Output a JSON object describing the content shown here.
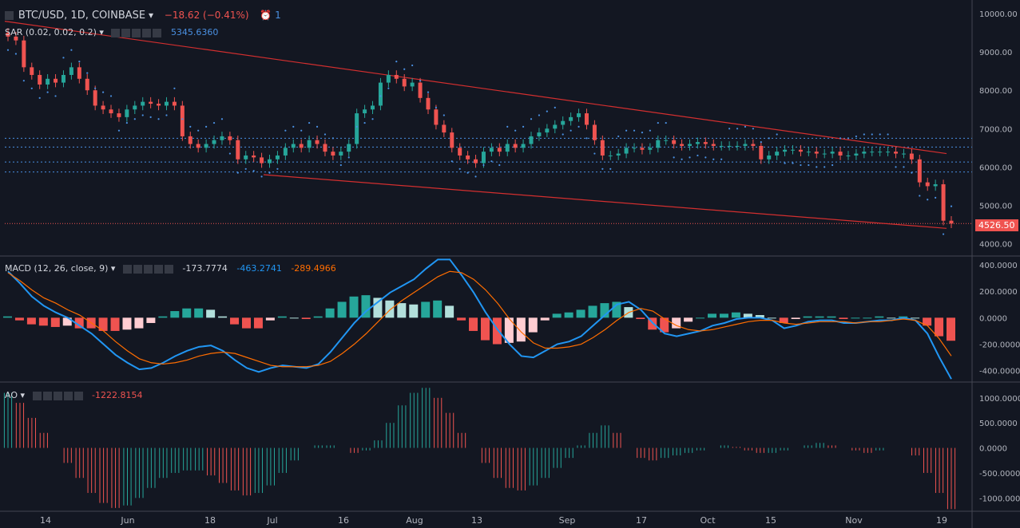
{
  "header": {
    "symbol": "BTC/USD, 1D, COINBASE",
    "change": "−18.62 (−0.41%)",
    "alerts": "1"
  },
  "sar_legend": {
    "label": "SAR (0.02, 0.02, 0.2)",
    "value": "5345.6360"
  },
  "macd_legend": {
    "label": "MACD (12, 26, close, 9)",
    "hist": "-173.7774",
    "macd": "-463.2741",
    "signal": "-289.4966"
  },
  "ao_legend": {
    "label": "AO",
    "value": "-1222.8154"
  },
  "last_price": "4526.50",
  "colors": {
    "background": "#131722",
    "up": "#26a69a",
    "down": "#ef5350",
    "sar": "#4a90e2",
    "trend": "#d32f2f",
    "macd": "#2196f3",
    "signal": "#ff6d00",
    "ao_up": "#26a69a",
    "ao_down": "#ef5350"
  },
  "chart_data": [
    {
      "type": "candlestick",
      "title": "BTC/USD, 1D, COINBASE",
      "x_ticks": [
        "14",
        "Jun",
        "18",
        "Jul",
        "16",
        "Aug",
        "13",
        "Sep",
        "17",
        "Oct",
        "15",
        "Nov",
        "19"
      ],
      "y_ticks": [
        "10000.00",
        "9000.00",
        "8000.00",
        "7000.00",
        "6000.00",
        "5000.00",
        "4000.00"
      ],
      "ylim": [
        3700,
        10250
      ],
      "series": [
        {
          "points": [
            [
              0,
              9400
            ],
            [
              10,
              9300
            ],
            [
              20,
              8600
            ],
            [
              30,
              8400
            ],
            [
              40,
              8150
            ],
            [
              50,
              8300
            ],
            [
              60,
              8200
            ],
            [
              70,
              8400
            ],
            [
              80,
              8600
            ],
            [
              90,
              8300
            ],
            [
              100,
              8000
            ],
            [
              110,
              7600
            ],
            [
              120,
              7500
            ],
            [
              130,
              7400
            ],
            [
              140,
              7300
            ],
            [
              150,
              7500
            ],
            [
              160,
              7600
            ],
            [
              170,
              7700
            ],
            [
              180,
              7650
            ],
            [
              190,
              7600
            ],
            [
              200,
              7700
            ],
            [
              210,
              7600
            ],
            [
              220,
              6800
            ],
            [
              230,
              6600
            ],
            [
              240,
              6500
            ],
            [
              250,
              6600
            ],
            [
              260,
              6700
            ],
            [
              270,
              6800
            ],
            [
              280,
              6700
            ],
            [
              290,
              6200
            ],
            [
              300,
              6300
            ],
            [
              310,
              6250
            ],
            [
              320,
              6100
            ],
            [
              330,
              6200
            ],
            [
              340,
              6300
            ],
            [
              350,
              6500
            ],
            [
              360,
              6600
            ],
            [
              370,
              6500
            ],
            [
              380,
              6700
            ],
            [
              390,
              6600
            ],
            [
              400,
              6400
            ],
            [
              410,
              6300
            ],
            [
              420,
              6400
            ],
            [
              430,
              6600
            ],
            [
              440,
              7400
            ],
            [
              450,
              7500
            ],
            [
              460,
              7600
            ],
            [
              470,
              8200
            ],
            [
              480,
              8400
            ],
            [
              490,
              8300
            ],
            [
              500,
              8100
            ],
            [
              510,
              8200
            ],
            [
              520,
              7800
            ],
            [
              530,
              7500
            ],
            [
              540,
              7100
            ],
            [
              550,
              6900
            ],
            [
              560,
              6500
            ],
            [
              570,
              6300
            ],
            [
              580,
              6200
            ],
            [
              590,
              6100
            ],
            [
              600,
              6400
            ],
            [
              610,
              6500
            ],
            [
              620,
              6400
            ],
            [
              630,
              6600
            ],
            [
              640,
              6500
            ],
            [
              650,
              6600
            ],
            [
              660,
              6800
            ],
            [
              670,
              6900
            ],
            [
              680,
              7000
            ],
            [
              690,
              7100
            ],
            [
              700,
              7200
            ],
            [
              710,
              7300
            ],
            [
              720,
              7400
            ],
            [
              730,
              7100
            ],
            [
              740,
              6700
            ],
            [
              750,
              6300
            ],
            [
              760,
              6300
            ],
            [
              770,
              6350
            ],
            [
              780,
              6500
            ],
            [
              790,
              6500
            ],
            [
              800,
              6450
            ],
            [
              810,
              6500
            ],
            [
              820,
              6700
            ],
            [
              830,
              6700
            ],
            [
              840,
              6600
            ],
            [
              850,
              6550
            ],
            [
              860,
              6600
            ],
            [
              870,
              6650
            ],
            [
              880,
              6600
            ],
            [
              890,
              6550
            ],
            [
              900,
              6550
            ],
            [
              910,
              6550
            ],
            [
              920,
              6550
            ],
            [
              930,
              6600
            ],
            [
              940,
              6550
            ],
            [
              950,
              6200
            ],
            [
              960,
              6300
            ],
            [
              970,
              6400
            ],
            [
              980,
              6450
            ],
            [
              990,
              6450
            ],
            [
              1000,
              6400
            ],
            [
              1010,
              6400
            ],
            [
              1020,
              6350
            ],
            [
              1030,
              6350
            ],
            [
              1040,
              6400
            ],
            [
              1050,
              6300
            ],
            [
              1060,
              6300
            ],
            [
              1070,
              6350
            ],
            [
              1080,
              6400
            ],
            [
              1090,
              6400
            ],
            [
              1100,
              6400
            ],
            [
              1110,
              6400
            ],
            [
              1120,
              6350
            ],
            [
              1130,
              6350
            ],
            [
              1140,
              6200
            ],
            [
              1150,
              5600
            ],
            [
              1160,
              5500
            ],
            [
              1170,
              5550
            ],
            [
              1180,
              4600
            ],
            [
              1190,
              4526
            ]
          ]
        }
      ],
      "sar": {
        "name": "SAR (0.02, 0.02, 0.2)",
        "last": 5345.636
      },
      "last_price": 4526.5
    },
    {
      "type": "line",
      "title": "MACD (12, 26, close, 9)",
      "y_ticks": [
        "400.0000",
        "200.0000",
        "0.0000",
        "-200.0000",
        "-400.0000"
      ],
      "ylim": [
        -480,
        460
      ],
      "series": [
        {
          "name": "MACD",
          "values": [
            350,
            260,
            160,
            90,
            40,
            0,
            -60,
            -120,
            -200,
            -280,
            -340,
            -390,
            -380,
            -340,
            -290,
            -250,
            -220,
            -210,
            -250,
            -320,
            -380,
            -410,
            -380,
            -360,
            -370,
            -380,
            -350,
            -260,
            -150,
            -40,
            50,
            120,
            190,
            240,
            290,
            370,
            440,
            440,
            320,
            190,
            40,
            -90,
            -200,
            -290,
            -300,
            -250,
            -200,
            -180,
            -140,
            -60,
            20,
            100,
            120,
            60,
            -40,
            -120,
            -140,
            -120,
            -100,
            -60,
            -40,
            -10,
            0,
            0,
            -20,
            -80,
            -60,
            -30,
            -20,
            -20,
            -40,
            -40,
            -30,
            -20,
            -20,
            0,
            -20,
            -120,
            -300,
            -463
          ]
        },
        {
          "name": "Signal",
          "values": [
            340,
            280,
            210,
            150,
            110,
            60,
            20,
            -40,
            -100,
            -180,
            -250,
            -310,
            -340,
            -350,
            -340,
            -320,
            -290,
            -270,
            -260,
            -270,
            -300,
            -330,
            -360,
            -370,
            -370,
            -370,
            -360,
            -330,
            -270,
            -200,
            -120,
            -30,
            60,
            130,
            190,
            250,
            310,
            350,
            340,
            290,
            210,
            110,
            -10,
            -110,
            -190,
            -230,
            -230,
            -220,
            -200,
            -150,
            -90,
            -20,
            40,
            70,
            50,
            -10,
            -60,
            -90,
            -100,
            -90,
            -70,
            -50,
            -30,
            -20,
            -20,
            -40,
            -50,
            -40,
            -30,
            -30,
            -30,
            -40,
            -30,
            -30,
            -20,
            -10,
            -20,
            -60,
            -160,
            -289
          ]
        },
        {
          "name": "Histogram",
          "values": [
            10,
            -20,
            -50,
            -60,
            -70,
            -60,
            -80,
            -80,
            -100,
            -100,
            -90,
            -80,
            -40,
            10,
            50,
            70,
            70,
            60,
            10,
            -50,
            -80,
            -80,
            -20,
            10,
            0,
            -10,
            10,
            70,
            120,
            160,
            170,
            150,
            130,
            110,
            100,
            120,
            130,
            90,
            -20,
            -100,
            -170,
            -200,
            -190,
            -180,
            -110,
            -20,
            30,
            40,
            60,
            90,
            110,
            120,
            80,
            -10,
            -90,
            -110,
            -80,
            -30,
            0,
            30,
            30,
            40,
            30,
            20,
            0,
            -40,
            -10,
            10,
            10,
            10,
            -10,
            0,
            0,
            10,
            0,
            10,
            0,
            -60,
            -140,
            -174
          ]
        }
      ]
    },
    {
      "type": "bar",
      "title": "AO",
      "y_ticks": [
        "1000.0000",
        "500.0000",
        "0.0000",
        "-500.0000",
        "-1000.0000"
      ],
      "ylim": [
        -1250,
        1300
      ],
      "values": [
        1100,
        900,
        600,
        300,
        0,
        -300,
        -600,
        -900,
        -1100,
        -1200,
        -1150,
        -1000,
        -800,
        -600,
        -500,
        -450,
        -450,
        -550,
        -700,
        -850,
        -950,
        -900,
        -750,
        -500,
        -250,
        0,
        50,
        50,
        0,
        -100,
        -50,
        150,
        500,
        850,
        1100,
        1200,
        1000,
        700,
        300,
        0,
        -300,
        -600,
        -800,
        -850,
        -750,
        -600,
        -400,
        -200,
        50,
        300,
        450,
        300,
        0,
        -200,
        -250,
        -200,
        -150,
        -100,
        -50,
        0,
        50,
        20,
        -50,
        -100,
        -100,
        -50,
        0,
        50,
        100,
        50,
        0,
        -50,
        -100,
        -50,
        0,
        0,
        -150,
        -500,
        -900,
        -1223
      ]
    }
  ]
}
